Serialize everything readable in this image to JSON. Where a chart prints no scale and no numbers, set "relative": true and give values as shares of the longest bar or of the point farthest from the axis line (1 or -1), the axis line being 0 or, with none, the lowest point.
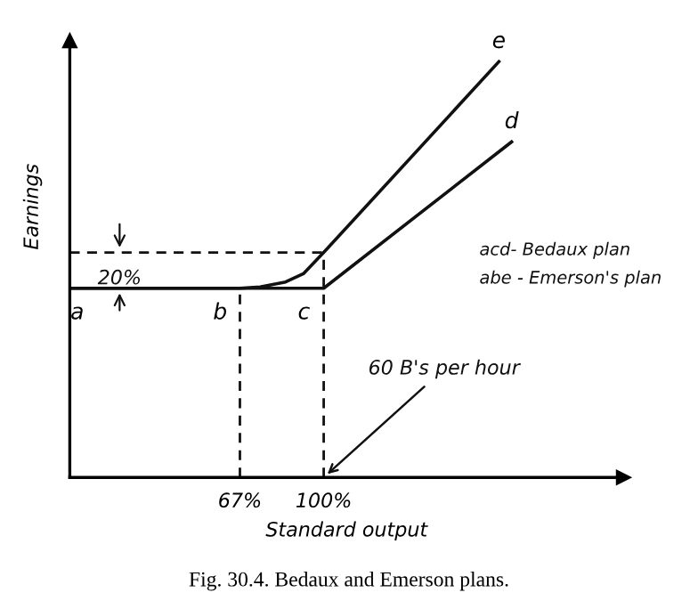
{
  "chart_data": {
    "type": "line",
    "title": "Fig. 30.4. Bedaux and Emerson plans.",
    "xlabel": "Standard output",
    "ylabel": "Earnings",
    "relative": true,
    "xlim": [
      0,
      218
    ],
    "xticks": [
      {
        "value": 67,
        "label": "67%"
      },
      {
        "value": 100,
        "label": "100%"
      }
    ],
    "tick_labels": "x",
    "grid": false,
    "marker": "none",
    "series": [
      {
        "color": "#111111",
        "line_style": "solid",
        "x": [
          0,
          100,
          174
        ],
        "values": [
          0.455,
          0.455,
          0.807
        ]
      },
      {
        "color": "#111111",
        "line_style": "solid",
        "x": [
          0,
          67,
          75,
          85,
          92,
          100,
          169
        ],
        "values": [
          0.455,
          0.455,
          0.458,
          0.47,
          0.49,
          0.541,
          1
        ]
      },
      {
        "color": "#111111",
        "line_style": "dashed",
        "x": [
          67,
          67
        ],
        "values": [
          0,
          0.455
        ]
      },
      {
        "color": "#111111",
        "line_style": "dashed",
        "x": [
          100,
          100
        ],
        "values": [
          0,
          0.541
        ]
      },
      {
        "color": "#111111",
        "line_style": "dashed",
        "x": [
          0,
          100
        ],
        "values": [
          0.541,
          0.541
        ]
      }
    ],
    "annotations": [
      {
        "text": "a",
        "x": 0,
        "y": 0.455
      },
      {
        "text": "b",
        "x": 67,
        "y": 0.455
      },
      {
        "text": "c",
        "x": 100,
        "y": 0.455
      },
      {
        "text": "d",
        "x": 174,
        "y": 0.807
      },
      {
        "text": "e",
        "x": 169,
        "y": 1
      },
      {
        "text": "60 B's per hour",
        "x": 100,
        "y": 0
      },
      "20%",
      "acd- Bedaux plan",
      "abe - Emerson's plan"
    ]
  }
}
